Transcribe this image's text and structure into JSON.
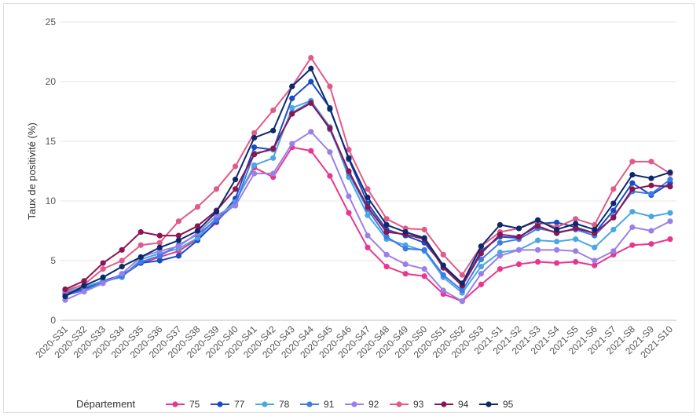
{
  "chart_data": {
    "type": "line",
    "title": "",
    "xlabel": "",
    "ylabel": "Taux de positivité (%)",
    "ylim": [
      0,
      25
    ],
    "yticks": [
      0,
      5,
      10,
      15,
      20,
      25
    ],
    "grid": true,
    "legend_position": "bottom",
    "legend_title": "Département",
    "categories": [
      "2020-S31",
      "2020-S32",
      "2020-S33",
      "2020-S34",
      "2020-S35",
      "2020-S36",
      "2020-S37",
      "2020-S38",
      "2020-S39",
      "2020-S40",
      "2020-S41",
      "2020-S42",
      "2020-S43",
      "2020-S44",
      "2020-S45",
      "2020-S46",
      "2020-S47",
      "2020-S48",
      "2020-S49",
      "2020-S50",
      "2020-S51",
      "2020-S52",
      "2020-S53",
      "2021-S1",
      "2021-S2",
      "2021-S3",
      "2021-S4",
      "2021-S5",
      "2021-S6",
      "2021-S7",
      "2021-S8",
      "2021-S9",
      "2021-S10"
    ],
    "series": [
      {
        "name": "75",
        "color": "#e8368f",
        "values": [
          2.3,
          2.7,
          3.2,
          3.7,
          4.8,
          5.3,
          5.8,
          6.8,
          8.2,
          10.0,
          12.8,
          12.0,
          14.5,
          14.2,
          12.1,
          9.0,
          6.1,
          4.5,
          3.9,
          3.7,
          2.2,
          1.6,
          3.0,
          4.3,
          4.7,
          4.9,
          4.8,
          4.9,
          4.6,
          5.5,
          6.3,
          6.4,
          6.8
        ]
      },
      {
        "name": "77",
        "color": "#1a4bc4",
        "values": [
          2.2,
          2.6,
          3.3,
          3.8,
          4.8,
          5.0,
          5.4,
          6.7,
          8.3,
          10.2,
          14.5,
          14.3,
          18.6,
          20.0,
          17.8,
          13.5,
          9.8,
          7.6,
          7.1,
          6.5,
          4.6,
          2.9,
          5.8,
          7.0,
          6.9,
          8.1,
          8.2,
          7.8,
          7.3,
          9.2,
          11.5,
          10.5,
          11.5
        ]
      },
      {
        "name": "78",
        "color": "#4aa8e0",
        "values": [
          2.4,
          2.8,
          3.3,
          3.6,
          5.1,
          5.6,
          6.0,
          6.9,
          8.6,
          9.9,
          13.0,
          13.6,
          17.8,
          18.4,
          16.2,
          12.0,
          8.8,
          6.8,
          6.3,
          5.8,
          3.6,
          2.3,
          4.5,
          5.7,
          5.9,
          6.7,
          6.6,
          6.8,
          6.1,
          7.6,
          9.1,
          8.7,
          9.0
        ]
      },
      {
        "name": "91",
        "color": "#3d7be8",
        "values": [
          2.1,
          2.5,
          3.2,
          3.7,
          4.9,
          5.4,
          6.3,
          7.2,
          8.4,
          9.7,
          14.0,
          14.3,
          17.4,
          18.3,
          16.0,
          12.3,
          9.3,
          7.0,
          6.0,
          5.9,
          3.8,
          2.5,
          5.1,
          6.5,
          6.8,
          7.7,
          7.4,
          7.6,
          7.1,
          8.7,
          10.8,
          10.6,
          11.8
        ]
      },
      {
        "name": "92",
        "color": "#9b7fe8",
        "values": [
          1.7,
          2.4,
          3.1,
          3.9,
          5.3,
          5.8,
          6.2,
          7.3,
          8.8,
          9.6,
          12.3,
          12.3,
          14.8,
          15.8,
          14.1,
          10.4,
          7.1,
          5.5,
          4.7,
          4.3,
          2.5,
          1.6,
          3.9,
          5.4,
          5.9,
          5.9,
          5.9,
          5.8,
          5.0,
          5.8,
          7.8,
          7.5,
          8.3
        ]
      },
      {
        "name": "93",
        "color": "#e05a8a",
        "values": [
          2.5,
          3.0,
          4.3,
          5.0,
          6.3,
          6.5,
          8.3,
          9.5,
          11.0,
          12.9,
          15.7,
          17.6,
          19.6,
          22.0,
          19.6,
          14.3,
          11.0,
          8.5,
          7.7,
          7.6,
          5.5,
          3.8,
          6.2,
          7.4,
          7.7,
          8.3,
          7.8,
          8.5,
          8.0,
          11.0,
          13.3,
          13.3,
          12.3
        ]
      },
      {
        "name": "94",
        "color": "#8c1450",
        "values": [
          2.6,
          3.3,
          4.8,
          5.9,
          7.4,
          7.1,
          7.1,
          7.9,
          9.2,
          11.0,
          13.9,
          14.4,
          17.3,
          18.2,
          16.1,
          12.5,
          9.5,
          7.4,
          7.2,
          6.8,
          4.4,
          2.9,
          5.6,
          7.2,
          7.0,
          7.9,
          7.3,
          7.7,
          7.3,
          8.6,
          11.0,
          11.3,
          11.2
        ]
      },
      {
        "name": "95",
        "color": "#0c2a6b",
        "values": [
          2.0,
          2.9,
          3.6,
          4.5,
          5.3,
          6.1,
          6.7,
          7.5,
          9.1,
          11.8,
          15.3,
          15.9,
          19.6,
          21.1,
          17.7,
          13.6,
          10.3,
          8.0,
          7.4,
          6.9,
          4.6,
          3.1,
          6.2,
          8.0,
          7.7,
          8.4,
          7.6,
          8.1,
          7.6,
          9.8,
          12.2,
          11.9,
          12.4
        ]
      }
    ]
  }
}
